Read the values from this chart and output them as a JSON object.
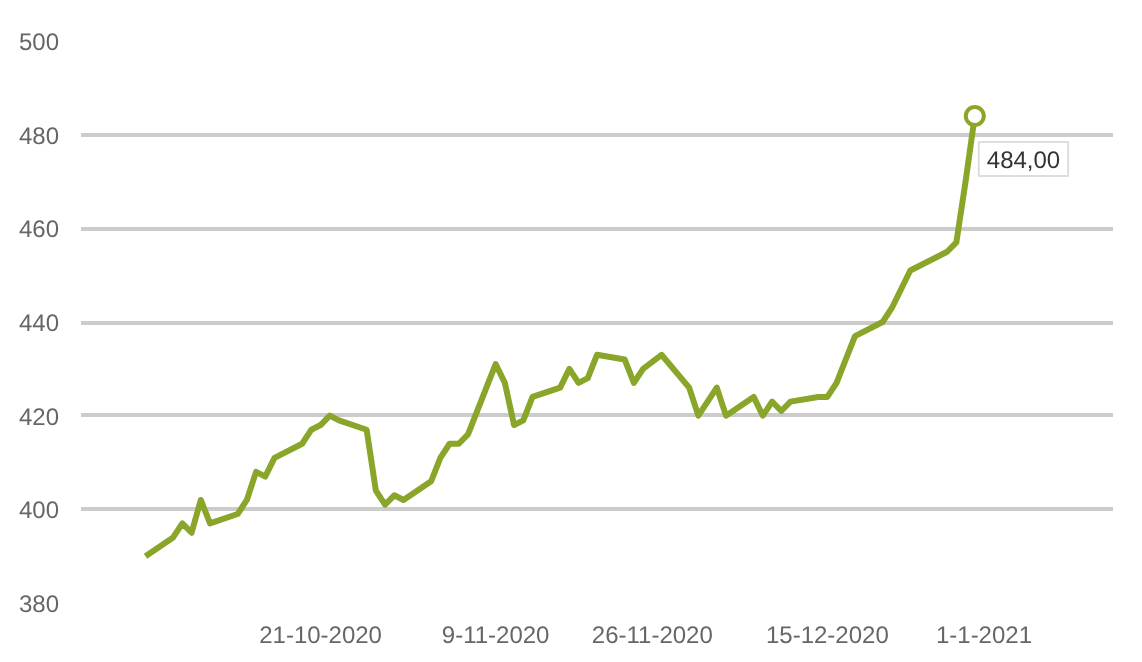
{
  "chart_data": {
    "type": "line",
    "x": [
      "2020-10-02",
      "2020-10-05",
      "2020-10-06",
      "2020-10-07",
      "2020-10-08",
      "2020-10-09",
      "2020-10-12",
      "2020-10-13",
      "2020-10-14",
      "2020-10-15",
      "2020-10-16",
      "2020-10-19",
      "2020-10-20",
      "2020-10-21",
      "2020-10-22",
      "2020-10-23",
      "2020-10-26",
      "2020-10-27",
      "2020-10-28",
      "2020-10-29",
      "2020-10-30",
      "2020-11-02",
      "2020-11-03",
      "2020-11-04",
      "2020-11-05",
      "2020-11-06",
      "2020-11-09",
      "2020-11-10",
      "2020-11-11",
      "2020-11-12",
      "2020-11-13",
      "2020-11-16",
      "2020-11-17",
      "2020-11-18",
      "2020-11-19",
      "2020-11-20",
      "2020-11-23",
      "2020-11-24",
      "2020-11-25",
      "2020-11-27",
      "2020-11-30",
      "2020-12-01",
      "2020-12-02",
      "2020-12-03",
      "2020-12-04",
      "2020-12-07",
      "2020-12-08",
      "2020-12-09",
      "2020-12-10",
      "2020-12-11",
      "2020-12-14",
      "2020-12-15",
      "2020-12-16",
      "2020-12-17",
      "2020-12-18",
      "2020-12-21",
      "2020-12-22",
      "2020-12-23",
      "2020-12-24",
      "2020-12-28",
      "2020-12-29",
      "2020-12-30",
      "2020-12-31"
    ],
    "series": [
      {
        "color": "#8aa62a",
        "values": [
          390,
          394,
          397,
          395,
          402,
          397,
          399,
          402,
          408,
          407,
          411,
          414,
          417,
          418,
          420,
          419,
          417,
          404,
          401,
          403,
          402,
          406,
          411,
          414,
          414,
          416,
          431,
          427,
          418,
          419,
          424,
          426,
          430,
          427,
          428,
          433,
          432,
          427,
          430,
          433,
          426,
          420,
          423,
          426,
          420,
          424,
          420,
          423,
          421,
          423,
          424,
          424,
          427,
          432,
          437,
          440,
          443,
          447,
          451,
          455,
          457,
          470,
          484
        ]
      }
    ],
    "annotations": [
      {
        "text": "484,00",
        "x": "2020-12-31",
        "y": 484
      }
    ],
    "xlim": [
      "2020-09-25",
      "2021-01-15"
    ],
    "xticks": [
      {
        "value": "2020-10-21",
        "label": "21-10-2020"
      },
      {
        "value": "2020-11-09",
        "label": "9-11-2020"
      },
      {
        "value": "2020-11-26",
        "label": "26-11-2020"
      },
      {
        "value": "2020-12-15",
        "label": "15-12-2020"
      },
      {
        "value": "2021-01-01",
        "label": "1-1-2021"
      }
    ],
    "ylim": [
      380,
      500
    ],
    "yticks": [
      380,
      400,
      420,
      440,
      460,
      480,
      500
    ],
    "grid": "y",
    "line_style": "solid"
  }
}
